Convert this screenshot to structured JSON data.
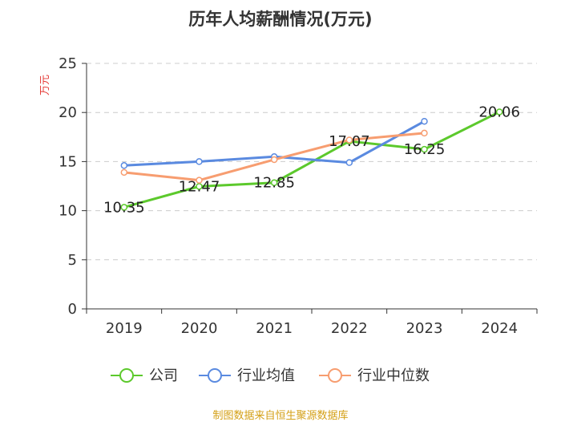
{
  "chart_data": {
    "type": "line",
    "title": "历年人均薪酬情况(万元)",
    "ylabel": "万元",
    "ylim": [
      0,
      25
    ],
    "yticks": [
      0,
      5,
      10,
      15,
      20,
      25
    ],
    "grid": true,
    "legend_position": "bottom",
    "categories": [
      "2019",
      "2020",
      "2021",
      "2022",
      "2023",
      "2024"
    ],
    "series": [
      {
        "name": "公司",
        "color": "#5cc92c",
        "values": [
          10.35,
          12.47,
          12.85,
          17.07,
          16.25,
          20.06
        ],
        "labeled": true
      },
      {
        "name": "行业均值",
        "color": "#5a8ae0",
        "values": [
          14.6,
          15.0,
          15.5,
          14.9,
          19.1,
          null
        ],
        "labeled": false
      },
      {
        "name": "行业中位数",
        "color": "#f79d70",
        "values": [
          13.9,
          13.1,
          15.2,
          17.2,
          17.9,
          null
        ],
        "labeled": false
      }
    ],
    "data_labels": [
      "10.35",
      "12.47",
      "12.85",
      "17.07",
      "16.25",
      "20.06"
    ]
  },
  "source": "制图数据来自恒生聚源数据库"
}
